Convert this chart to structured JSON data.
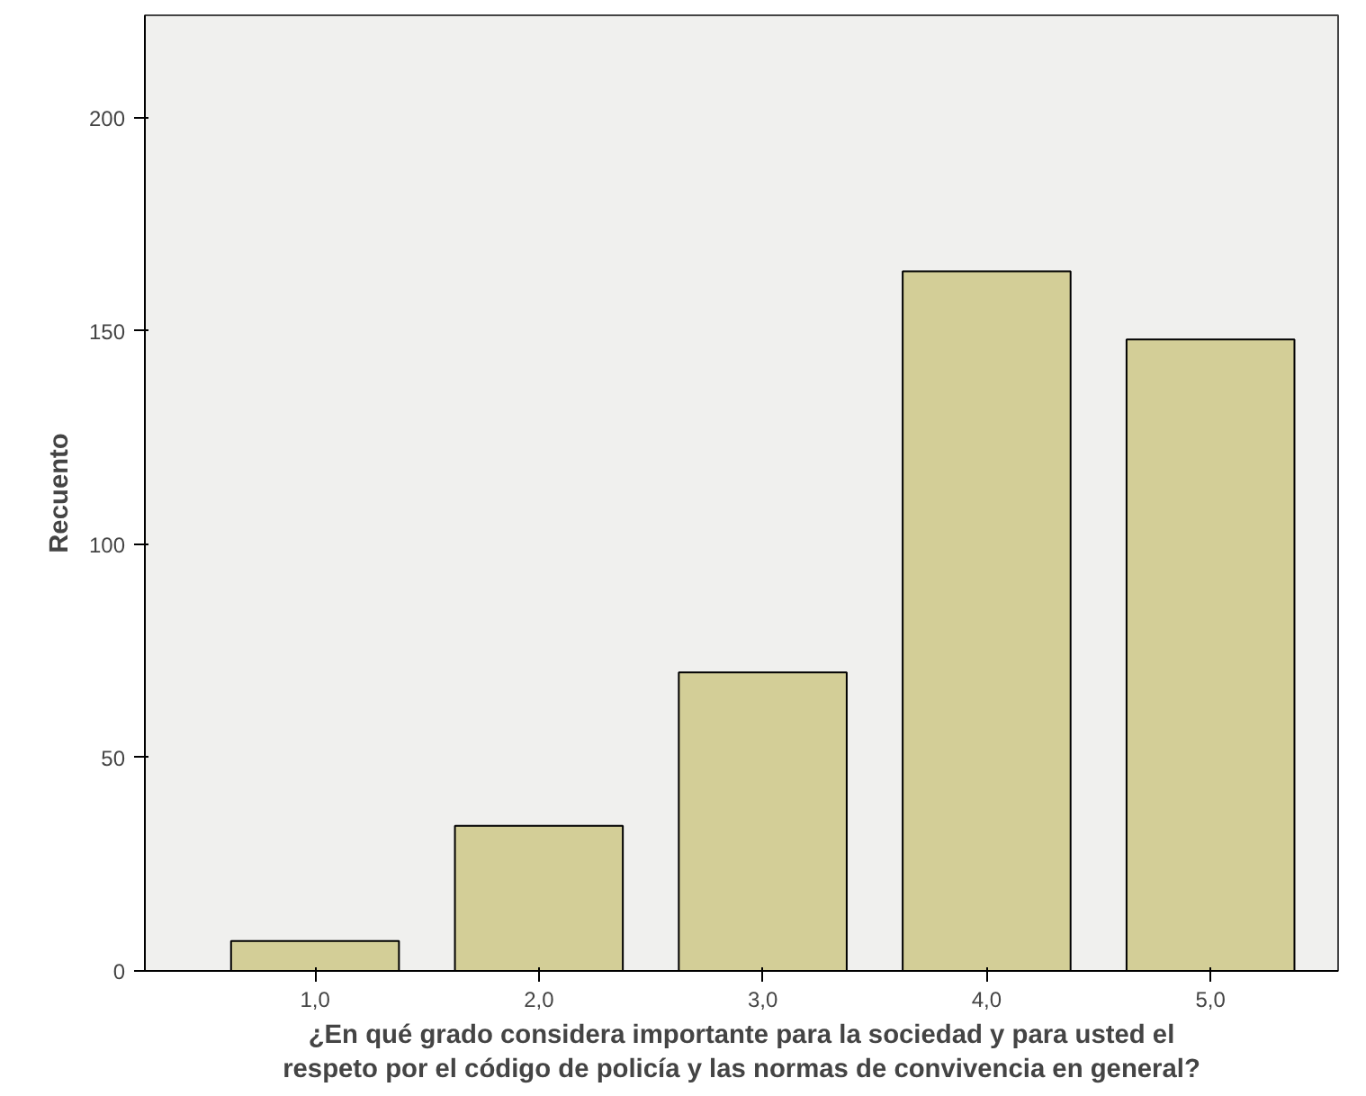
{
  "chart_data": {
    "type": "bar",
    "xlabel": "¿En qué grado considera importante para la sociedad y para usted el\nrespeto por el código de policía y las normas de convivencia en general?",
    "ylabel": "Recuento",
    "categories": [
      "1,0",
      "2,0",
      "3,0",
      "4,0",
      "5,0"
    ],
    "values": [
      7,
      34,
      70,
      164,
      148
    ],
    "color": "#d3ce97",
    "ylim": [
      0,
      224
    ],
    "yticks": [
      0,
      50,
      100,
      150,
      200
    ],
    "grid": false
  }
}
